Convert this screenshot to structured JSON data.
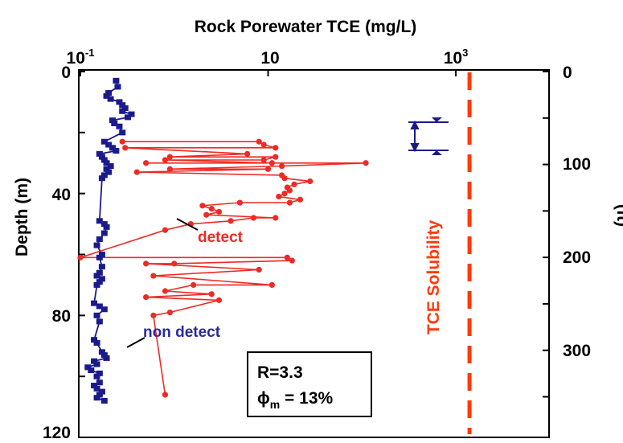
{
  "chart_data": {
    "type": "line",
    "title": "Rock  Porewater  TCE (mg/L)",
    "x_scale": "log",
    "x_ticks": [
      {
        "value": 0.1,
        "base": "10",
        "exp": "-1"
      },
      {
        "value": 10,
        "base": "10",
        "exp": ""
      },
      {
        "value": 1000,
        "base": "10",
        "exp": "3"
      }
    ],
    "xlim": [
      0.1,
      3000
    ],
    "y_left": {
      "label": "Depth  (m)",
      "ticks": [
        "0",
        "40",
        "80",
        "120"
      ],
      "tick_values": [
        0,
        40,
        80,
        120
      ],
      "ylim": [
        0,
        120
      ]
    },
    "y_right": {
      "label": "(ft)",
      "ticks": [
        "0",
        "100",
        "200",
        "300"
      ],
      "tick_values": [
        0,
        100,
        200,
        300
      ],
      "ylim_ft": [
        0,
        393.7
      ]
    },
    "solubility": {
      "label": "TCE  Solubility",
      "value": 1400,
      "color": "#ff3b0a"
    },
    "series": [
      {
        "name": "non detect",
        "color": "#1a1a8c",
        "points": [
          [
            0.24,
            3
          ],
          [
            0.25,
            5
          ],
          [
            0.2,
            7
          ],
          [
            0.19,
            8
          ],
          [
            0.21,
            9
          ],
          [
            0.26,
            10
          ],
          [
            0.28,
            11
          ],
          [
            0.3,
            12
          ],
          [
            0.28,
            13
          ],
          [
            0.35,
            14
          ],
          [
            0.32,
            15
          ],
          [
            0.22,
            16
          ],
          [
            0.23,
            17
          ],
          [
            0.26,
            18
          ],
          [
            0.28,
            20
          ],
          [
            0.18,
            23
          ],
          [
            0.2,
            24
          ],
          [
            0.22,
            25
          ],
          [
            0.24,
            26
          ],
          [
            0.16,
            27
          ],
          [
            0.17,
            28
          ],
          [
            0.18,
            29
          ],
          [
            0.19,
            30
          ],
          [
            0.21,
            31
          ],
          [
            0.19,
            32
          ],
          [
            0.2,
            33
          ],
          [
            0.18,
            34
          ],
          [
            0.17,
            35
          ],
          [
            0.16,
            49
          ],
          [
            0.18,
            50
          ],
          [
            0.19,
            51
          ],
          [
            0.18,
            53
          ],
          [
            0.16,
            55
          ],
          [
            0.15,
            57
          ],
          [
            0.17,
            60
          ],
          [
            0.16,
            61
          ],
          [
            0.17,
            64
          ],
          [
            0.16,
            66
          ],
          [
            0.15,
            67
          ],
          [
            0.17,
            68
          ],
          [
            0.16,
            69
          ],
          [
            0.15,
            70
          ],
          [
            0.14,
            76
          ],
          [
            0.16,
            77
          ],
          [
            0.18,
            78
          ],
          [
            0.15,
            80
          ],
          [
            0.16,
            82
          ],
          [
            0.14,
            88
          ],
          [
            0.15,
            89
          ],
          [
            0.17,
            92
          ],
          [
            0.18,
            93
          ],
          [
            0.19,
            94
          ],
          [
            0.14,
            95
          ],
          [
            0.15,
            96
          ],
          [
            0.12,
            97
          ],
          [
            0.13,
            98
          ],
          [
            0.16,
            99
          ],
          [
            0.15,
            100
          ],
          [
            0.16,
            102
          ],
          [
            0.14,
            103
          ],
          [
            0.15,
            104
          ],
          [
            0.17,
            105
          ],
          [
            0.16,
            106
          ],
          [
            0.15,
            107
          ],
          [
            0.18,
            108
          ]
        ]
      },
      {
        "name": "detect",
        "color": "#ee2a24",
        "points": [
          [
            0.28,
            23
          ],
          [
            8,
            23
          ],
          [
            9,
            24
          ],
          [
            12,
            25
          ],
          [
            0.3,
            25
          ],
          [
            6,
            27
          ],
          [
            0.9,
            28
          ],
          [
            12,
            28
          ],
          [
            9,
            29
          ],
          [
            0.8,
            29
          ],
          [
            11,
            30
          ],
          [
            0.5,
            30
          ],
          [
            110,
            30
          ],
          [
            14,
            31
          ],
          [
            0.9,
            32
          ],
          [
            10,
            32
          ],
          [
            0.4,
            33
          ],
          [
            14,
            34
          ],
          [
            15,
            35
          ],
          [
            28,
            36
          ],
          [
            19,
            37
          ],
          [
            16,
            38
          ],
          [
            17,
            39
          ],
          [
            15,
            40
          ],
          [
            13,
            41
          ],
          [
            22,
            42
          ],
          [
            17,
            43
          ],
          [
            5,
            43
          ],
          [
            2,
            44
          ],
          [
            2.5,
            45
          ],
          [
            3,
            46
          ],
          [
            2.2,
            47
          ],
          [
            12,
            48
          ],
          [
            7,
            48
          ],
          [
            4,
            49
          ],
          [
            1.5,
            50
          ],
          [
            0.8,
            52
          ],
          [
            0.1,
            61
          ],
          [
            16,
            61
          ],
          [
            18,
            62
          ],
          [
            1,
            63
          ],
          [
            0.5,
            63
          ],
          [
            8,
            65
          ],
          [
            0.6,
            67
          ],
          [
            11,
            70
          ],
          [
            1.6,
            70
          ],
          [
            0.8,
            72
          ],
          [
            2.5,
            73
          ],
          [
            0.5,
            74
          ],
          [
            3,
            75
          ],
          [
            0.9,
            79
          ],
          [
            0.6,
            80
          ],
          [
            0.8,
            106
          ]
        ]
      }
    ],
    "annotations": [
      {
        "text": "detect",
        "color": "#ee2a24"
      },
      {
        "text": "non  detect",
        "color": "#1a1a8c"
      }
    ],
    "legend_box": {
      "line1": "R=3.3",
      "phi_symbol": "ϕ",
      "phi_subscript": "m",
      "phi_value": " = 13%"
    }
  }
}
